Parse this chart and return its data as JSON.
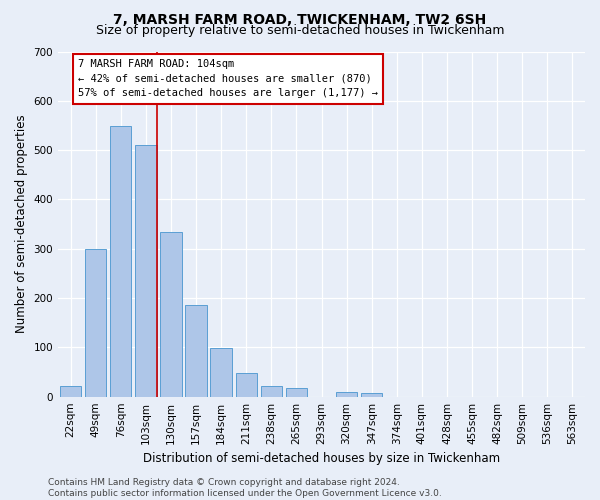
{
  "title": "7, MARSH FARM ROAD, TWICKENHAM, TW2 6SH",
  "subtitle": "Size of property relative to semi-detached houses in Twickenham",
  "xlabel": "Distribution of semi-detached houses by size in Twickenham",
  "ylabel": "Number of semi-detached properties",
  "categories": [
    "22sqm",
    "49sqm",
    "76sqm",
    "103sqm",
    "130sqm",
    "157sqm",
    "184sqm",
    "211sqm",
    "238sqm",
    "265sqm",
    "293sqm",
    "320sqm",
    "347sqm",
    "374sqm",
    "401sqm",
    "428sqm",
    "455sqm",
    "482sqm",
    "509sqm",
    "536sqm",
    "563sqm"
  ],
  "values": [
    22,
    300,
    548,
    510,
    333,
    186,
    98,
    48,
    22,
    17,
    0,
    9,
    8,
    0,
    0,
    0,
    0,
    0,
    0,
    0,
    0
  ],
  "bar_color": "#aec6e8",
  "bar_edge_color": "#5a9fd4",
  "highlight_index": 3,
  "highlight_line_color": "#cc0000",
  "annotation_text": "7 MARSH FARM ROAD: 104sqm\n← 42% of semi-detached houses are smaller (870)\n57% of semi-detached houses are larger (1,177) →",
  "annotation_box_color": "#ffffff",
  "annotation_box_edge_color": "#cc0000",
  "ylim": [
    0,
    700
  ],
  "yticks": [
    0,
    100,
    200,
    300,
    400,
    500,
    600,
    700
  ],
  "footer": "Contains HM Land Registry data © Crown copyright and database right 2024.\nContains public sector information licensed under the Open Government Licence v3.0.",
  "bg_color": "#e8eef8",
  "plot_bg_color": "#e8eef8",
  "grid_color": "#ffffff",
  "title_fontsize": 10,
  "subtitle_fontsize": 9,
  "xlabel_fontsize": 8.5,
  "ylabel_fontsize": 8.5,
  "tick_fontsize": 7.5,
  "footer_fontsize": 6.5,
  "ann_fontsize": 7.5
}
